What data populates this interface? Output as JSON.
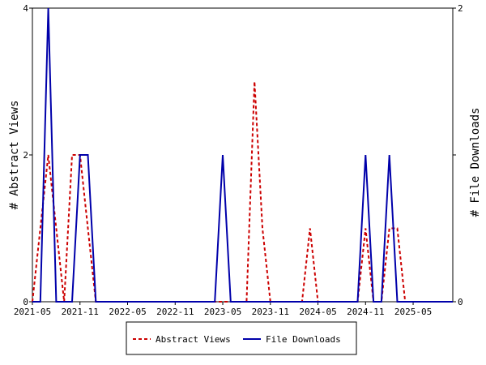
{
  "chart_data": {
    "type": "line",
    "title": "",
    "x_ticks": [
      "2021-05",
      "2021-11",
      "2022-05",
      "2022-11",
      "2023-05",
      "2023-11",
      "2024-05",
      "2024-11",
      "2025-05"
    ],
    "x_start": "2021-05",
    "x_end": "2025-10",
    "y_left": {
      "label": "# Abstract Views",
      "ticks": [
        "0",
        "2",
        "4"
      ],
      "ylim": [
        0,
        4
      ]
    },
    "y_right": {
      "label": "# File Downloads",
      "ticks": [
        "0",
        "1",
        "2"
      ],
      "ylim": [
        0,
        2
      ]
    },
    "grid": false,
    "legend_position": "bottom-center",
    "series": [
      {
        "name": "Abstract Views",
        "axis": "left",
        "color": "#cc0000",
        "style": "dashed",
        "points": [
          [
            "2021-05",
            0
          ],
          [
            "2021-06",
            1
          ],
          [
            "2021-07",
            2
          ],
          [
            "2021-08",
            1
          ],
          [
            "2021-09",
            0
          ],
          [
            "2021-10",
            2
          ],
          [
            "2021-11",
            2
          ],
          [
            "2021-12",
            1
          ],
          [
            "2022-01",
            0
          ],
          [
            "2023-07",
            0
          ],
          [
            "2023-08",
            0
          ],
          [
            "2023-09",
            3
          ],
          [
            "2023-10",
            1
          ],
          [
            "2023-11",
            0
          ],
          [
            "2024-03",
            0
          ],
          [
            "2024-04",
            1
          ],
          [
            "2024-05",
            0
          ],
          [
            "2024-10",
            0
          ],
          [
            "2024-11",
            1
          ],
          [
            "2024-12",
            0
          ],
          [
            "2025-01",
            0
          ],
          [
            "2025-02",
            1
          ],
          [
            "2025-03",
            1
          ],
          [
            "2025-04",
            0
          ],
          [
            "2025-10",
            0
          ]
        ]
      },
      {
        "name": "File Downloads",
        "axis": "right",
        "color": "#0000aa",
        "style": "solid",
        "points": [
          [
            "2021-05",
            0
          ],
          [
            "2021-06",
            0
          ],
          [
            "2021-07",
            2
          ],
          [
            "2021-08",
            0
          ],
          [
            "2021-09",
            0
          ],
          [
            "2021-10",
            0
          ],
          [
            "2021-11",
            1
          ],
          [
            "2021-12",
            1
          ],
          [
            "2022-01",
            0
          ],
          [
            "2023-04",
            0
          ],
          [
            "2023-05",
            1
          ],
          [
            "2023-06",
            0
          ],
          [
            "2024-10",
            0
          ],
          [
            "2024-11",
            1
          ],
          [
            "2024-12",
            0
          ],
          [
            "2025-01",
            0
          ],
          [
            "2025-02",
            1
          ],
          [
            "2025-03",
            0
          ],
          [
            "2025-10",
            0
          ]
        ]
      }
    ]
  }
}
